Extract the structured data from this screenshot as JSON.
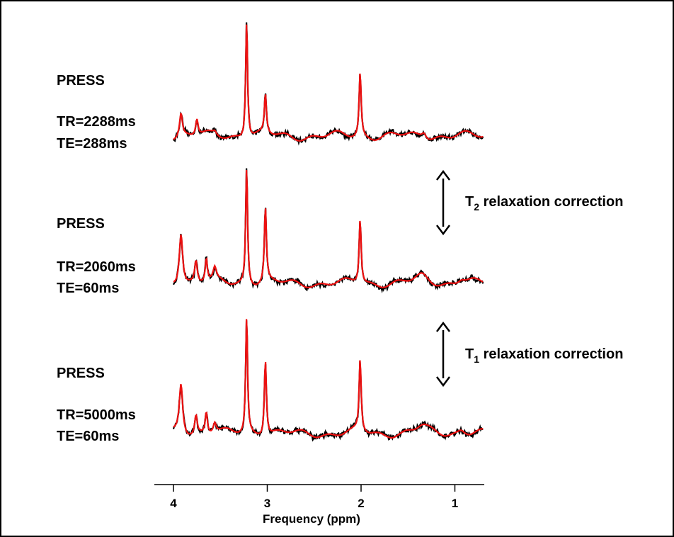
{
  "chart_data": {
    "type": "line",
    "xlabel": "Frequency (ppm)",
    "x_axis": {
      "reversed": true,
      "range": [
        4.2,
        0.7
      ],
      "ticks": [
        "4",
        "3",
        "2",
        "1"
      ]
    },
    "colors": {
      "measured": "#000000",
      "fit": "#ee1111"
    },
    "panels": [
      {
        "sequence": "PRESS",
        "tr": "TR=2288ms",
        "te": "TE=288ms",
        "baseline": 0.0,
        "noise": 0.04,
        "peaks": [
          {
            "ppm": 3.92,
            "height": 0.45,
            "width": 0.018
          },
          {
            "ppm": 3.75,
            "height": 0.32,
            "width": 0.016
          },
          {
            "ppm": 3.56,
            "height": 0.06,
            "width": 0.02
          },
          {
            "ppm": 3.22,
            "height": 2.3,
            "width": 0.012
          },
          {
            "ppm": 3.02,
            "height": 0.75,
            "width": 0.013
          },
          {
            "ppm": 2.01,
            "height": 1.25,
            "width": 0.013
          },
          {
            "ppm": 1.33,
            "height": 0.12,
            "width": 0.03
          }
        ]
      },
      {
        "sequence": "PRESS",
        "tr": "TR=2060ms",
        "te": "TE=60ms",
        "baseline": 0.0,
        "noise": 0.045,
        "peaks": [
          {
            "ppm": 3.92,
            "height": 1.1,
            "width": 0.022
          },
          {
            "ppm": 3.76,
            "height": 0.45,
            "width": 0.016
          },
          {
            "ppm": 3.65,
            "height": 0.5,
            "width": 0.014
          },
          {
            "ppm": 3.56,
            "height": 0.25,
            "width": 0.02
          },
          {
            "ppm": 3.22,
            "height": 2.45,
            "width": 0.012
          },
          {
            "ppm": 3.02,
            "height": 1.55,
            "width": 0.013
          },
          {
            "ppm": 2.01,
            "height": 1.35,
            "width": 0.013
          },
          {
            "ppm": 1.35,
            "height": 0.14,
            "width": 0.08
          },
          {
            "ppm": 0.93,
            "height": 0.1,
            "width": 0.05
          }
        ]
      },
      {
        "sequence": "PRESS",
        "tr": "TR=5000ms",
        "te": "TE=60ms",
        "baseline": 0.0,
        "noise": 0.045,
        "peaks": [
          {
            "ppm": 3.92,
            "height": 1.05,
            "width": 0.022
          },
          {
            "ppm": 3.76,
            "height": 0.4,
            "width": 0.016
          },
          {
            "ppm": 3.65,
            "height": 0.45,
            "width": 0.014
          },
          {
            "ppm": 3.56,
            "height": 0.22,
            "width": 0.02
          },
          {
            "ppm": 3.22,
            "height": 2.45,
            "width": 0.012
          },
          {
            "ppm": 3.02,
            "height": 1.6,
            "width": 0.013
          },
          {
            "ppm": 2.01,
            "height": 1.5,
            "width": 0.013
          },
          {
            "ppm": 1.35,
            "height": 0.14,
            "width": 0.08
          },
          {
            "ppm": 0.93,
            "height": 0.1,
            "width": 0.05
          }
        ]
      }
    ],
    "corrections": [
      {
        "label_main": "T",
        "label_sub": "2",
        "label_rest": " relaxation  correction"
      },
      {
        "label_main": "T",
        "label_sub": "1",
        "label_rest": " relaxation  correction"
      }
    ]
  }
}
